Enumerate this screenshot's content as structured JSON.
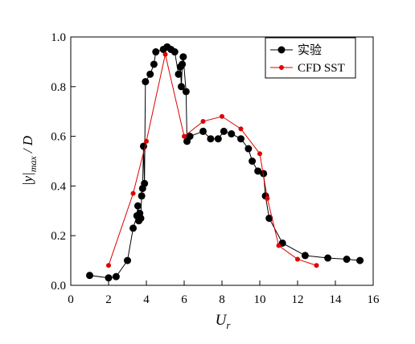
{
  "chart_data": {
    "type": "line",
    "x_label": {
      "main": "U",
      "sub": "r"
    },
    "y_label": {
      "main": "|y|",
      "sub": "max",
      "tail": "/ D"
    },
    "xlim": [
      0,
      16
    ],
    "xticks": [
      0,
      2,
      4,
      6,
      8,
      10,
      12,
      14,
      16
    ],
    "ylim": [
      0,
      1
    ],
    "yticks": [
      {
        "value": 0,
        "label": "0.0"
      },
      0.2,
      0.4,
      0.6,
      0.8,
      {
        "value": 1,
        "label": "1.0"
      }
    ],
    "legend": "top-right",
    "series": [
      {
        "name": "实验",
        "color": "#000000",
        "marker_size": 4.5,
        "x": [
          1,
          2,
          2.4,
          3,
          3.3,
          3.5,
          3.55,
          3.6,
          3.65,
          3.7,
          3.75,
          3.8,
          3.85,
          3.9,
          3.95,
          4.2,
          4.4,
          4.5,
          4.9,
          5.1,
          5.3,
          5.5,
          5.7,
          5.8,
          5.85,
          5.9,
          5.95,
          6.1,
          6.15,
          6.3,
          7,
          7.4,
          7.8,
          8.1,
          8.5,
          9,
          9.4,
          9.6,
          9.9,
          10.2,
          10.3,
          10.5,
          11.2,
          12.4,
          13.6,
          14.6,
          15.3
        ],
        "values": [
          0.04,
          0.03,
          0.035,
          0.1,
          0.23,
          0.28,
          0.32,
          0.26,
          0.29,
          0.27,
          0.36,
          0.39,
          0.56,
          0.41,
          0.82,
          0.85,
          0.89,
          0.94,
          0.95,
          0.96,
          0.95,
          0.94,
          0.85,
          0.88,
          0.8,
          0.89,
          0.92,
          0.78,
          0.58,
          0.6,
          0.62,
          0.59,
          0.59,
          0.62,
          0.61,
          0.59,
          0.55,
          0.5,
          0.46,
          0.45,
          0.36,
          0.27,
          0.17,
          0.12,
          0.11,
          0.105,
          0.1
        ]
      },
      {
        "name": "CFD SST",
        "color": "#e00000",
        "marker_size": 3,
        "x": [
          2,
          3.3,
          4,
          5,
          6,
          7,
          8,
          9,
          10,
          10.4,
          11,
          12,
          13
        ],
        "values": [
          0.08,
          0.37,
          0.58,
          0.93,
          0.6,
          0.66,
          0.68,
          0.63,
          0.53,
          0.35,
          0.16,
          0.105,
          0.08
        ]
      }
    ]
  }
}
